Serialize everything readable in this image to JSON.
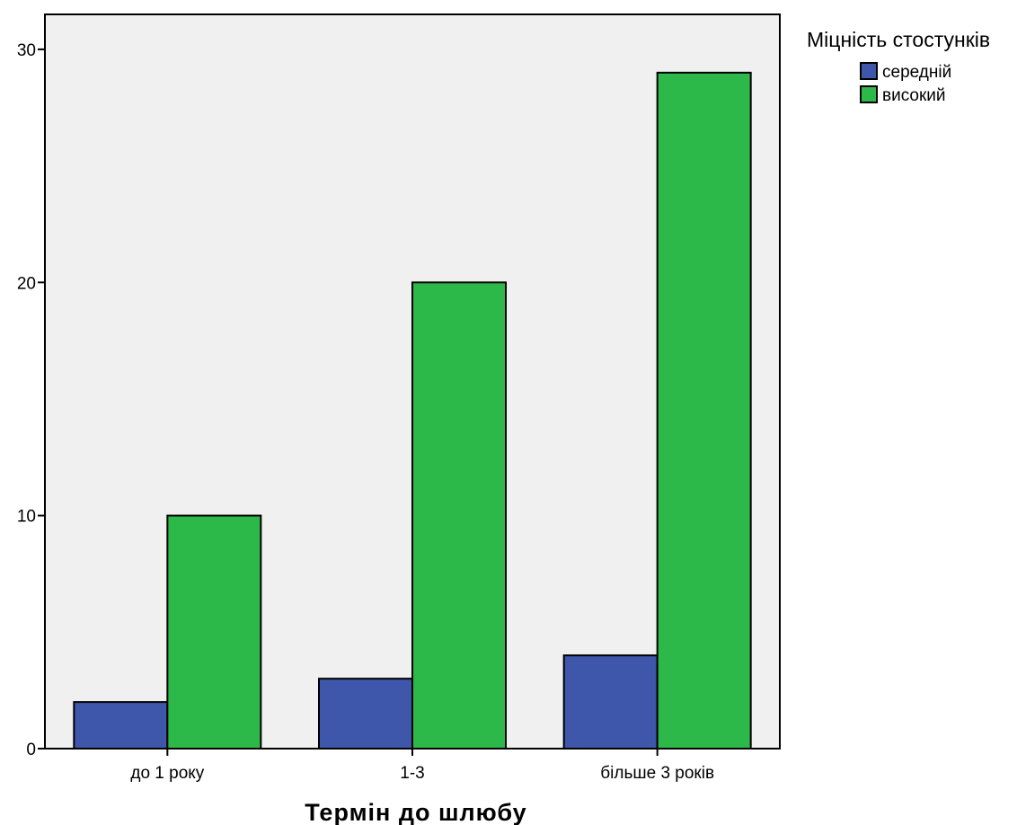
{
  "chart_data": {
    "type": "bar",
    "categories": [
      "до 1 року",
      "1-3",
      "більше 3 років"
    ],
    "series": [
      {
        "name": "середній",
        "values": [
          2,
          3,
          4
        ],
        "color": "#3f57aa"
      },
      {
        "name": "високий",
        "values": [
          10,
          20,
          29
        ],
        "color": "#2db84a"
      }
    ],
    "xlabel": "Термін до шлюбу",
    "ylabel": "",
    "ylim": [
      0,
      31.5
    ],
    "yticks": [
      0,
      10,
      20,
      30
    ],
    "legend": {
      "title": "Міцність стостунків",
      "placement": "right-top"
    },
    "plot_background": "#f0f0f0",
    "grid": false
  }
}
